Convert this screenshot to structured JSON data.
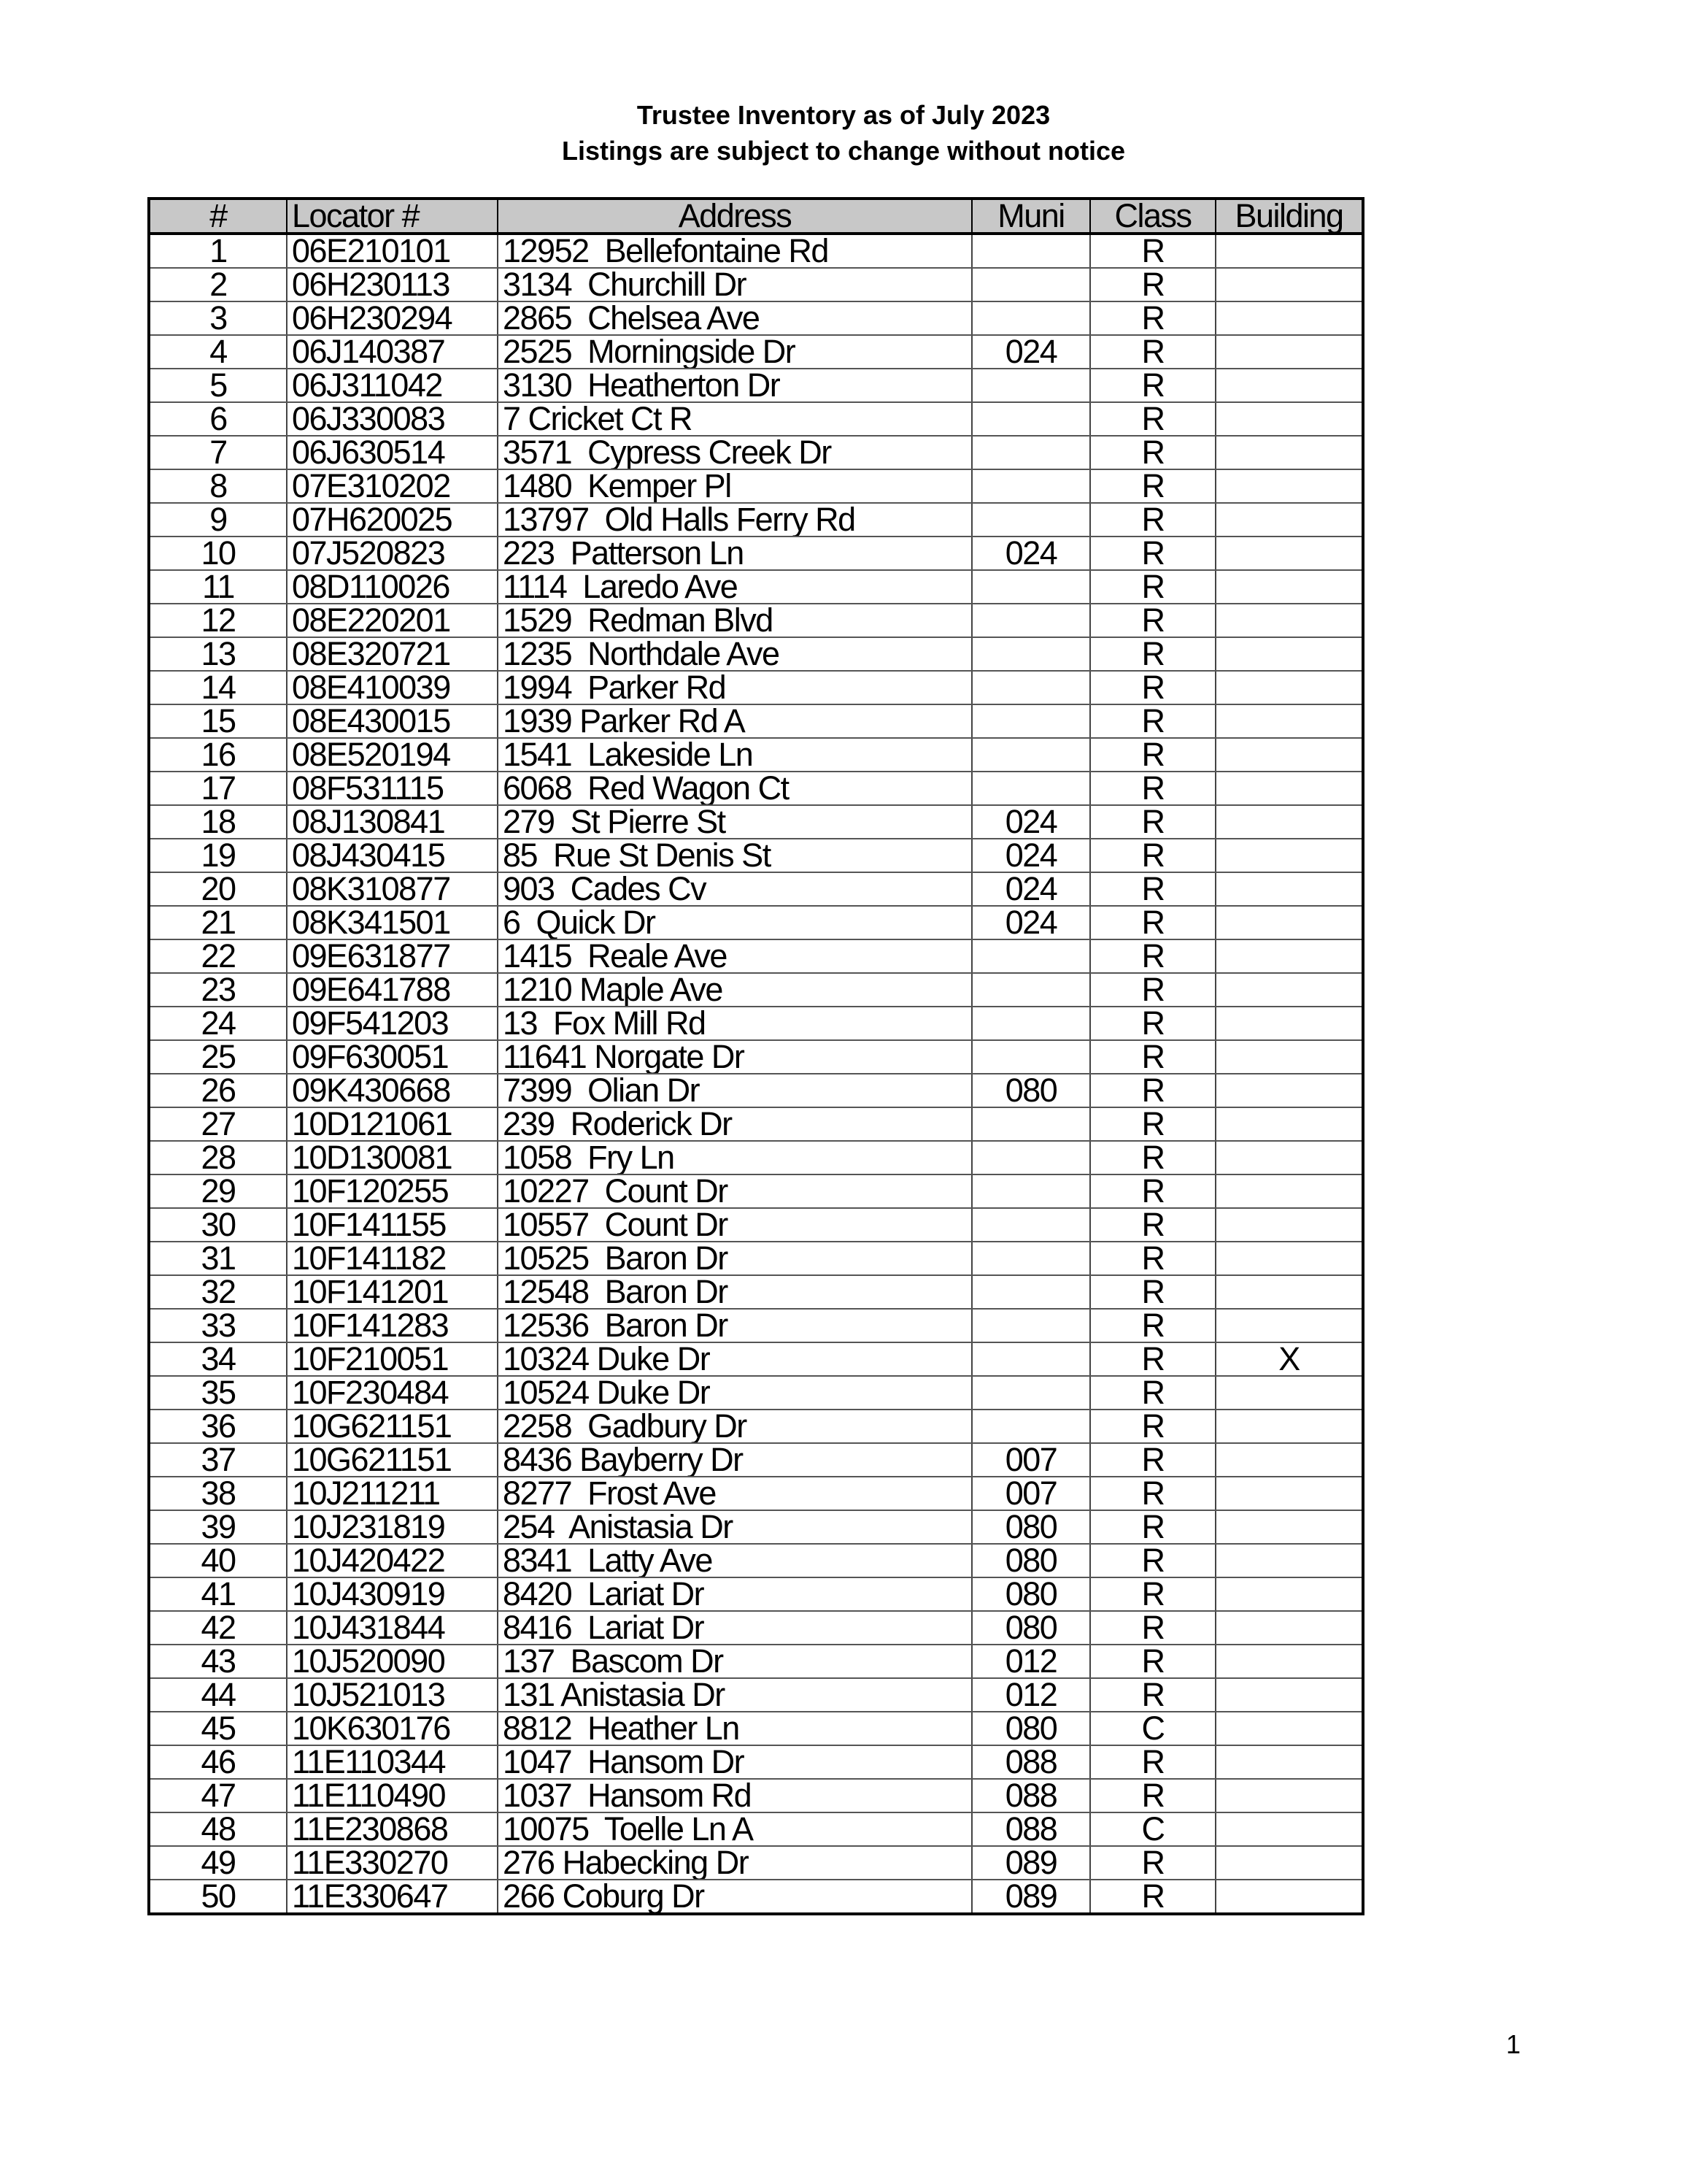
{
  "title": "Trustee Inventory as of July 2023",
  "subtitle": "Listings are subject to change without notice",
  "columns": [
    "#",
    "Locator #",
    "Address",
    "Muni",
    "Class",
    "Building"
  ],
  "rows": [
    [
      "1",
      "06E210101",
      "12952  Bellefontaine Rd",
      "",
      "R",
      ""
    ],
    [
      "2",
      "06H230113",
      "3134  Churchill Dr",
      "",
      "R",
      ""
    ],
    [
      "3",
      "06H230294",
      "2865  Chelsea Ave",
      "",
      "R",
      ""
    ],
    [
      "4",
      "06J140387",
      "2525  Morningside Dr",
      "024",
      "R",
      ""
    ],
    [
      "5",
      "06J311042",
      "3130  Heatherton Dr",
      "",
      "R",
      ""
    ],
    [
      "6",
      "06J330083",
      "7 Cricket Ct R",
      "",
      "R",
      ""
    ],
    [
      "7",
      "06J630514",
      "3571  Cypress Creek Dr",
      "",
      "R",
      ""
    ],
    [
      "8",
      "07E310202",
      "1480  Kemper Pl",
      "",
      "R",
      ""
    ],
    [
      "9",
      "07H620025",
      "13797  Old Halls Ferry Rd",
      "",
      "R",
      ""
    ],
    [
      "10",
      "07J520823",
      "223  Patterson Ln",
      "024",
      "R",
      ""
    ],
    [
      "11",
      "08D110026",
      "1114  Laredo Ave",
      "",
      "R",
      ""
    ],
    [
      "12",
      "08E220201",
      "1529  Redman Blvd",
      "",
      "R",
      ""
    ],
    [
      "13",
      "08E320721",
      "1235  Northdale Ave",
      "",
      "R",
      ""
    ],
    [
      "14",
      "08E410039",
      "1994  Parker Rd",
      "",
      "R",
      ""
    ],
    [
      "15",
      "08E430015",
      "1939 Parker Rd A",
      "",
      "R",
      ""
    ],
    [
      "16",
      "08E520194",
      "1541  Lakeside Ln",
      "",
      "R",
      ""
    ],
    [
      "17",
      "08F531115",
      "6068  Red Wagon Ct",
      "",
      "R",
      ""
    ],
    [
      "18",
      "08J130841",
      "279  St Pierre St",
      "024",
      "R",
      ""
    ],
    [
      "19",
      "08J430415",
      "85  Rue St Denis St",
      "024",
      "R",
      ""
    ],
    [
      "20",
      "08K310877",
      "903  Cades Cv",
      "024",
      "R",
      ""
    ],
    [
      "21",
      "08K341501",
      "6  Quick Dr",
      "024",
      "R",
      ""
    ],
    [
      "22",
      "09E631877",
      "1415  Reale Ave",
      "",
      "R",
      ""
    ],
    [
      "23",
      "09E641788",
      "1210 Maple Ave",
      "",
      "R",
      ""
    ],
    [
      "24",
      "09F541203",
      "13  Fox Mill Rd",
      "",
      "R",
      ""
    ],
    [
      "25",
      "09F630051",
      "11641 Norgate Dr",
      "",
      "R",
      ""
    ],
    [
      "26",
      "09K430668",
      "7399  Olian Dr",
      "080",
      "R",
      ""
    ],
    [
      "27",
      "10D121061",
      "239  Roderick Dr",
      "",
      "R",
      ""
    ],
    [
      "28",
      "10D130081",
      "1058  Fry Ln",
      "",
      "R",
      ""
    ],
    [
      "29",
      "10F120255",
      "10227  Count Dr",
      "",
      "R",
      ""
    ],
    [
      "30",
      "10F141155",
      "10557  Count Dr",
      "",
      "R",
      ""
    ],
    [
      "31",
      "10F141182",
      "10525  Baron Dr",
      "",
      "R",
      ""
    ],
    [
      "32",
      "10F141201",
      "12548  Baron Dr",
      "",
      "R",
      ""
    ],
    [
      "33",
      "10F141283",
      "12536  Baron Dr",
      "",
      "R",
      ""
    ],
    [
      "34",
      "10F210051",
      "10324 Duke Dr",
      "",
      "R",
      "X"
    ],
    [
      "35",
      "10F230484",
      "10524 Duke Dr",
      "",
      "R",
      ""
    ],
    [
      "36",
      "10G621151",
      "2258  Gadbury Dr",
      "",
      "R",
      ""
    ],
    [
      "37",
      "10G621151",
      "8436 Bayberry Dr",
      "007",
      "R",
      ""
    ],
    [
      "38",
      "10J211211",
      "8277  Frost Ave",
      "007",
      "R",
      ""
    ],
    [
      "39",
      "10J231819",
      "254  Anistasia Dr",
      "080",
      "R",
      ""
    ],
    [
      "40",
      "10J420422",
      "8341  Latty Ave",
      "080",
      "R",
      ""
    ],
    [
      "41",
      "10J430919",
      "8420  Lariat Dr",
      "080",
      "R",
      ""
    ],
    [
      "42",
      "10J431844",
      "8416  Lariat Dr",
      "080",
      "R",
      ""
    ],
    [
      "43",
      "10J520090",
      "137  Bascom Dr",
      "012",
      "R",
      ""
    ],
    [
      "44",
      "10J521013",
      "131 Anistasia Dr",
      "012",
      "R",
      ""
    ],
    [
      "45",
      "10K630176",
      "8812  Heather Ln",
      "080",
      "C",
      ""
    ],
    [
      "46",
      "11E110344",
      "1047  Hansom Dr",
      "088",
      "R",
      ""
    ],
    [
      "47",
      "11E110490",
      "1037  Hansom Rd",
      "088",
      "R",
      ""
    ],
    [
      "48",
      "11E230868",
      "10075  Toelle Ln A",
      "088",
      "C",
      ""
    ],
    [
      "49",
      "11E330270",
      "276 Habecking Dr",
      "089",
      "R",
      ""
    ],
    [
      "50",
      "11E330647",
      "266 Coburg Dr",
      "089",
      "R",
      ""
    ]
  ],
  "page_number": "1"
}
